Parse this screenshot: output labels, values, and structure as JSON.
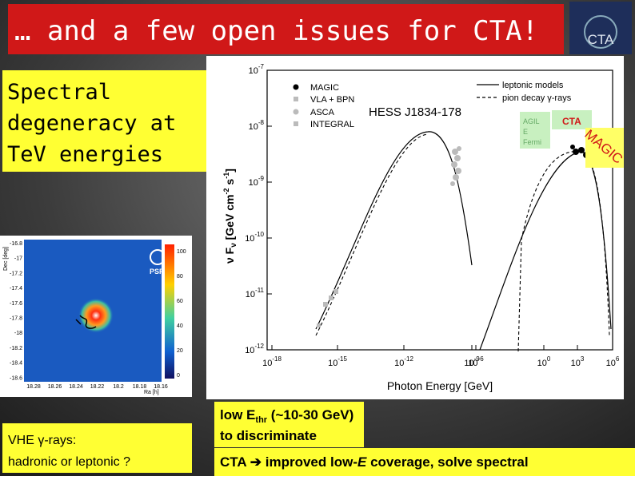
{
  "title": "… and a few open issues for CTA!",
  "logo": "CTA",
  "left_box": {
    "lines": [
      "Spectral",
      "degeneracy at",
      "TeV energies"
    ]
  },
  "skymap": {
    "y_axis_label": "Dec [deg]",
    "x_axis_label": "Ra [h]",
    "y_labels": [
      "-16.8",
      "-17",
      "-17.2",
      "-17.4",
      "-17.6",
      "-17.8",
      "-18",
      "-18.2",
      "-18.4",
      "-18.6"
    ],
    "x_labels": [
      "18.28",
      "18.26",
      "18.24",
      "18.22",
      "18.2",
      "18.18",
      "18.16"
    ],
    "colorbar_labels": [
      "100",
      "80",
      "60",
      "40",
      "20",
      "0"
    ],
    "psf": "PSF"
  },
  "bottom_left_box": {
    "lines": [
      "VHE γ-rays:",
      "hadronic or leptonic ?"
    ]
  },
  "sed": {
    "y_axis_label": {
      "main": "ν F",
      "sub": "ν",
      "rest": " [GeV cm",
      "exp1": "-2",
      "mid": " s",
      "exp2": "-1",
      "end": "]"
    },
    "x_axis_label": "Photon Energy [GeV]",
    "y_ticks": [
      {
        "base": "10",
        "exp": "-7"
      },
      {
        "base": "10",
        "exp": "-8"
      },
      {
        "base": "10",
        "exp": "-9"
      },
      {
        "base": "10",
        "exp": "-10"
      },
      {
        "base": "10",
        "exp": "-11"
      },
      {
        "base": "10",
        "exp": "-12"
      }
    ],
    "x_ticks": [
      {
        "base": "10",
        "exp": "-18"
      },
      {
        "base": "10",
        "exp": "-15"
      },
      {
        "base": "10",
        "exp": "-12"
      },
      {
        "base": "10",
        "exp": "-9"
      },
      {
        "base": "10",
        "exp": "-6"
      },
      {
        "base": "10",
        "exp": "0"
      },
      {
        "base": "10",
        "exp": "3"
      },
      {
        "base": "10",
        "exp": "6"
      }
    ],
    "legend_points": [
      "MAGIC",
      "VLA + BPN",
      "ASCA",
      "INTEGRAL"
    ],
    "legend_lines": [
      "leptonic models",
      "pion decay γ-rays"
    ],
    "source": "HESS J1834-178",
    "fermi_box": [
      "AGIL",
      "E",
      "Fermi"
    ],
    "cta_label": "CTA",
    "magic_label": "MAGIC"
  },
  "notes": {
    "threshold": {
      "pre": "low E",
      "sub": "thr",
      "post": " (~10-30 GeV)",
      "line2": "to discriminate"
    },
    "cta": {
      "pre": "CTA ",
      "arrow": "➔",
      "mid": " improved low-",
      "em": "E",
      "post": " coverage,  solve spectral"
    }
  }
}
